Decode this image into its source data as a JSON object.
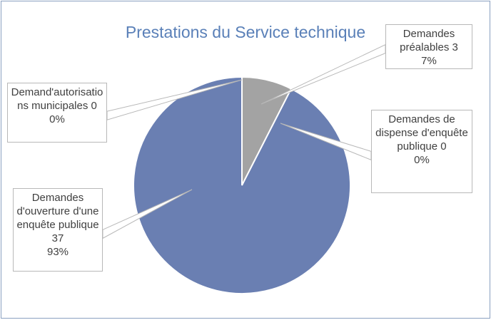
{
  "chart_data": {
    "type": "pie",
    "title": "Prestations du Service technique",
    "categories": [
      "Demandes préalables",
      "Demandes de dispense d'enquête publique",
      "Demandes d'ouverture d'une enquête publique",
      "Demand'autorisations municipales"
    ],
    "values": [
      3,
      0,
      37,
      0
    ],
    "percent_labels": [
      "7%",
      "0%",
      "93%",
      "0%"
    ],
    "colors": [
      "#a3a3a3",
      "#e08a4a",
      "#6a7fb2",
      "#f0c040"
    ]
  }
}
